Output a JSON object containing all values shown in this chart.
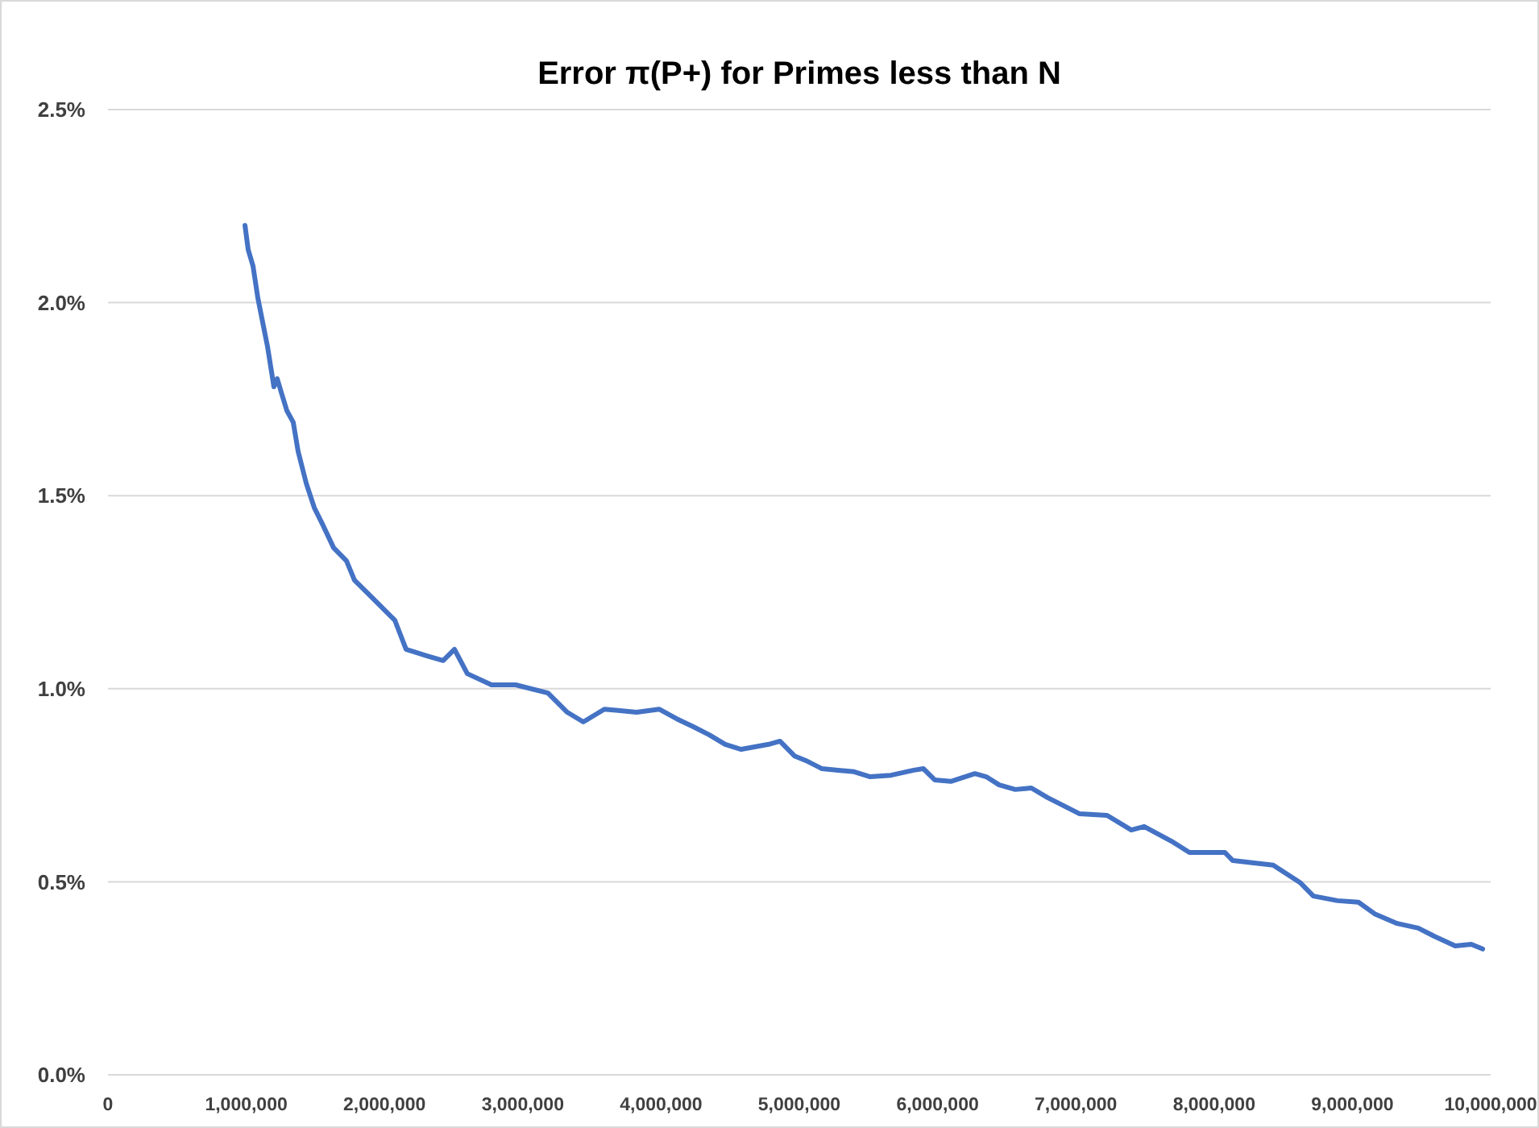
{
  "chart_data": {
    "type": "line",
    "title": "Error π(P+) for Primes less than N",
    "x": [
      991000,
      1014000,
      1049000,
      1084000,
      1119000,
      1154000,
      1200000,
      1224000,
      1259000,
      1294000,
      1340000,
      1375000,
      1434000,
      1492000,
      1550000,
      1632000,
      1725000,
      1783000,
      1876000,
      1958000,
      2075000,
      2156000,
      2308000,
      2424000,
      2506000,
      2599000,
      2774000,
      2949000,
      3182000,
      3322000,
      3438000,
      3590000,
      3823000,
      3986000,
      4114000,
      4231000,
      4347000,
      4464000,
      4580000,
      4779000,
      4860000,
      4965000,
      5047000,
      5163000,
      5280000,
      5396000,
      5513000,
      5664000,
      5828000,
      5897000,
      5979000,
      6096000,
      6270000,
      6352000,
      6445000,
      6562000,
      6678000,
      6795000,
      7028000,
      7226000,
      7401000,
      7494000,
      7692000,
      7821000,
      8077000,
      8135000,
      8427000,
      8625000,
      8718000,
      8893000,
      9044000,
      9161000,
      9324000,
      9476000,
      9592000,
      9744000,
      9860000,
      9942000
    ],
    "series": [
      {
        "color": "#4472c4",
        "values": [
          2.2,
          2.137,
          2.095,
          2.012,
          1.949,
          1.886,
          1.782,
          1.803,
          1.761,
          1.72,
          1.69,
          1.615,
          1.532,
          1.469,
          1.427,
          1.365,
          1.331,
          1.281,
          1.248,
          1.219,
          1.177,
          1.102,
          1.085,
          1.073,
          1.102,
          1.039,
          1.01,
          1.01,
          0.989,
          0.939,
          0.914,
          0.947,
          0.939,
          0.947,
          0.922,
          0.902,
          0.881,
          0.856,
          0.843,
          0.856,
          0.864,
          0.826,
          0.814,
          0.793,
          0.789,
          0.785,
          0.772,
          0.776,
          0.789,
          0.793,
          0.764,
          0.76,
          0.78,
          0.772,
          0.751,
          0.739,
          0.743,
          0.718,
          0.676,
          0.672,
          0.634,
          0.643,
          0.605,
          0.576,
          0.576,
          0.555,
          0.543,
          0.497,
          0.463,
          0.451,
          0.447,
          0.417,
          0.392,
          0.38,
          0.359,
          0.334,
          0.338,
          0.326
        ]
      }
    ],
    "xlim": [
      0,
      10000000
    ],
    "xticks": [
      0,
      {
        "value": 1000000,
        "label": "1,000,000"
      },
      {
        "value": 2000000,
        "label": "2,000,000"
      },
      {
        "value": 3000000,
        "label": "3,000,000"
      },
      {
        "value": 4000000,
        "label": "4,000,000"
      },
      {
        "value": 5000000,
        "label": "5,000,000"
      },
      {
        "value": 6000000,
        "label": "6,000,000"
      },
      {
        "value": 7000000,
        "label": "7,000,000"
      },
      {
        "value": 8000000,
        "label": "8,000,000"
      },
      {
        "value": 9000000,
        "label": "9,000,000"
      },
      {
        "value": 10000000,
        "label": "10,000,000"
      }
    ],
    "ylim": [
      0,
      2.5
    ],
    "yticks": [
      {
        "value": 0,
        "label": "0.0%"
      },
      {
        "value": 0.5,
        "label": "0.5%"
      },
      {
        "value": 1,
        "label": "1.0%"
      },
      {
        "value": 1.5,
        "label": "1.5%"
      },
      {
        "value": 2,
        "label": "2.0%"
      },
      {
        "value": 2.5,
        "label": "2.5%"
      }
    ],
    "grid": "y",
    "marker": "none",
    "line_style": "solid"
  }
}
